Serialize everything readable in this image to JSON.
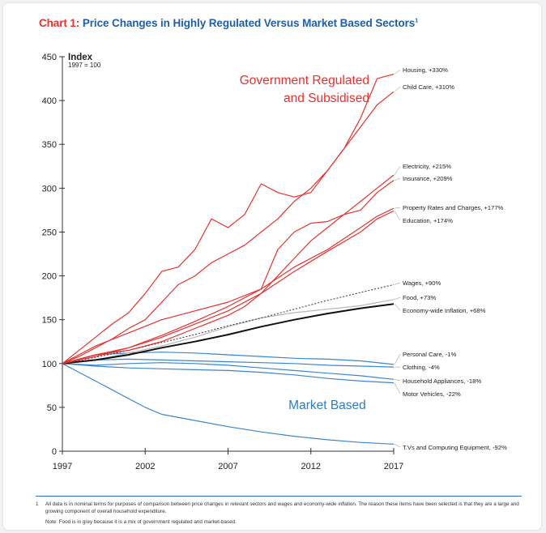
{
  "page": {
    "title_prefix": "Chart 1:",
    "title_text": "Price Changes in Highly Regulated Versus Market Based Sectors",
    "title_superscript": "1",
    "footnote_number": "1",
    "footnote_text": "All data is in nominal terms for purposes of comparison between price changes in relevant sectors and wages and economy-wide inflation. The reason these items have been selected is that they are a large and growing component of overall household expenditure.",
    "note_text": "Note: Food is in grey because it is a mix of government regulated and market-based."
  },
  "chart_data": {
    "type": "line",
    "title": "Price Changes in Highly Regulated Versus Market Based Sectors",
    "ylabel": "Index",
    "ylabel_sub": "1997 = 100",
    "xlabel": "",
    "xlim": [
      1997,
      2017
    ],
    "ylim": [
      0,
      450
    ],
    "x_ticks": [
      1997,
      2002,
      2007,
      2012,
      2017
    ],
    "y_ticks": [
      0,
      50,
      100,
      150,
      200,
      250,
      300,
      350,
      400,
      450
    ],
    "grid": false,
    "legend": "direct labels at right end of lines",
    "annotations": [
      {
        "text": "Government Regulated",
        "color": "#e8312f"
      },
      {
        "text": "and Subsidised",
        "color": "#e8312f"
      },
      {
        "text": "Market Based",
        "color": "#2d7bc7"
      }
    ],
    "colors": {
      "regulated": "#e8312f",
      "market": "#3a86cf",
      "food": "#b8b8b8",
      "inflation": "#111111",
      "wages": "#333333",
      "axis": "#333333"
    },
    "series": [
      {
        "name": "Housing, +330%",
        "group": "regulated",
        "style": "solid",
        "x": [
          1997,
          1999,
          2000,
          2001,
          2002,
          2003,
          2004,
          2005,
          2006,
          2007,
          2008,
          2009,
          2010,
          2011,
          2012,
          2013,
          2014,
          2015,
          2016,
          2017
        ],
        "y": [
          100,
          130,
          145,
          158,
          180,
          205,
          210,
          230,
          265,
          255,
          270,
          305,
          295,
          290,
          295,
          320,
          345,
          380,
          425,
          430
        ]
      },
      {
        "name": "Child Care, +310%",
        "group": "regulated",
        "style": "solid",
        "x": [
          1997,
          1998,
          1999,
          2000,
          2001,
          2002,
          2003,
          2004,
          2005,
          2006,
          2007,
          2008,
          2009,
          2010,
          2011,
          2012,
          2013,
          2014,
          2015,
          2016,
          2017
        ],
        "y": [
          100,
          108,
          118,
          128,
          140,
          150,
          170,
          190,
          200,
          215,
          225,
          235,
          250,
          265,
          285,
          300,
          320,
          345,
          370,
          395,
          410
        ]
      },
      {
        "name": "Electricity, +215%",
        "group": "regulated",
        "style": "solid",
        "x": [
          1997,
          1999,
          2001,
          2003,
          2005,
          2007,
          2008,
          2009,
          2010,
          2011,
          2012,
          2013,
          2014,
          2015,
          2016,
          2017
        ],
        "y": [
          100,
          110,
          115,
          125,
          140,
          155,
          165,
          180,
          200,
          220,
          240,
          255,
          270,
          285,
          300,
          315
        ]
      },
      {
        "name": "Insurance, +209%",
        "group": "regulated",
        "style": "solid",
        "x": [
          1997,
          1999,
          2001,
          2003,
          2005,
          2007,
          2009,
          2010,
          2011,
          2012,
          2013,
          2014,
          2015,
          2016,
          2017
        ],
        "y": [
          100,
          120,
          135,
          150,
          160,
          170,
          185,
          230,
          250,
          260,
          262,
          270,
          275,
          295,
          309
        ]
      },
      {
        "name": "Property Rates and Charges, +177%",
        "group": "regulated",
        "style": "solid",
        "x": [
          1997,
          1999,
          2001,
          2003,
          2005,
          2007,
          2009,
          2011,
          2013,
          2015,
          2016,
          2017
        ],
        "y": [
          100,
          108,
          118,
          132,
          148,
          165,
          185,
          210,
          230,
          255,
          268,
          277
        ]
      },
      {
        "name": "Education, +174%",
        "group": "regulated",
        "style": "solid",
        "x": [
          1997,
          1999,
          2001,
          2003,
          2005,
          2007,
          2009,
          2011,
          2013,
          2015,
          2016,
          2017
        ],
        "y": [
          100,
          110,
          118,
          130,
          145,
          160,
          180,
          205,
          228,
          250,
          265,
          274
        ]
      },
      {
        "name": "Wages, +90%",
        "group": "wages",
        "style": "dashed",
        "x": [
          1997,
          1999,
          2001,
          2003,
          2005,
          2007,
          2009,
          2011,
          2013,
          2015,
          2017
        ],
        "y": [
          100,
          107,
          115,
          124,
          133,
          143,
          152,
          162,
          172,
          181,
          190
        ]
      },
      {
        "name": "Food, +73%",
        "group": "food",
        "style": "solid",
        "x": [
          1997,
          1999,
          2001,
          2003,
          2005,
          2007,
          2009,
          2011,
          2013,
          2015,
          2017
        ],
        "y": [
          100,
          104,
          112,
          120,
          130,
          142,
          152,
          158,
          162,
          166,
          173
        ]
      },
      {
        "name": "Economy-wide Inflation, +68%",
        "group": "inflation",
        "style": "solid",
        "x": [
          1997,
          1999,
          2001,
          2003,
          2005,
          2007,
          2009,
          2011,
          2013,
          2015,
          2017
        ],
        "y": [
          100,
          104,
          110,
          118,
          125,
          133,
          142,
          150,
          157,
          163,
          168
        ]
      },
      {
        "name": "Personal Care, -1%",
        "group": "market",
        "style": "solid",
        "x": [
          1997,
          1999,
          2001,
          2003,
          2005,
          2007,
          2009,
          2011,
          2013,
          2015,
          2017
        ],
        "y": [
          100,
          110,
          112,
          113,
          112,
          110,
          108,
          106,
          105,
          103,
          99
        ]
      },
      {
        "name": "Clothing, -4%",
        "group": "market",
        "style": "solid",
        "x": [
          1997,
          1999,
          2001,
          2003,
          2005,
          2007,
          2009,
          2011,
          2013,
          2015,
          2017
        ],
        "y": [
          100,
          104,
          105,
          104,
          103,
          102,
          101,
          100,
          98,
          97,
          96
        ]
      },
      {
        "name": "Household Appliances, -18%",
        "group": "market",
        "style": "solid",
        "x": [
          1997,
          1999,
          2001,
          2003,
          2005,
          2007,
          2009,
          2011,
          2013,
          2015,
          2017
        ],
        "y": [
          100,
          98,
          100,
          101,
          100,
          98,
          95,
          92,
          89,
          86,
          82
        ]
      },
      {
        "name": "Motor Vehicles, -22%",
        "group": "market",
        "style": "solid",
        "x": [
          1997,
          1999,
          2001,
          2003,
          2005,
          2007,
          2009,
          2011,
          2013,
          2015,
          2017
        ],
        "y": [
          100,
          97,
          95,
          94,
          93,
          92,
          90,
          87,
          83,
          80,
          78
        ]
      },
      {
        "name": "T.Vs and Computing Equipment, -92%",
        "group": "market",
        "style": "solid",
        "x": [
          1997,
          1998,
          1999,
          2000,
          2001,
          2002,
          2003,
          2005,
          2007,
          2009,
          2011,
          2013,
          2015,
          2017
        ],
        "y": [
          100,
          90,
          80,
          70,
          60,
          50,
          42,
          35,
          28,
          22,
          17,
          13,
          10,
          8
        ]
      }
    ]
  }
}
